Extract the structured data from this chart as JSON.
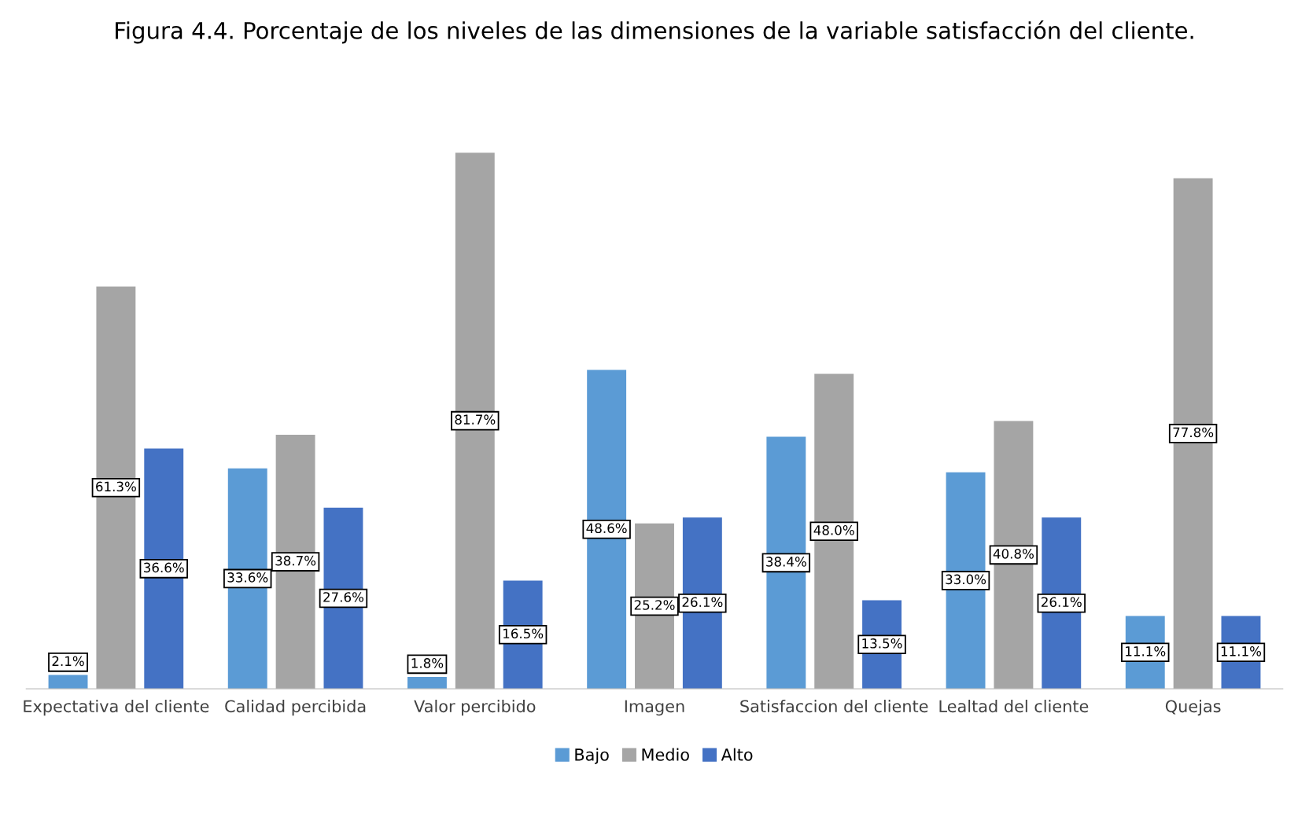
{
  "chart_data": {
    "type": "bar",
    "title": "Figura 4.4. Porcentaje de los niveles de las dimensiones de la variable satisfacción del cliente.",
    "categories": [
      "Expectativa del cliente",
      "Calidad percibida",
      "Valor percibido",
      "Imagen",
      "Satisfaccion del cliente",
      "Lealtad del cliente",
      "Quejas"
    ],
    "series": [
      {
        "name": "Bajo",
        "color": "#5b9bd5",
        "values": [
          2.1,
          33.6,
          1.8,
          48.6,
          38.4,
          33.0,
          11.1
        ],
        "value_labels": [
          "2.1%",
          "33.6%",
          "1.8%",
          "48.6%",
          "38.4%",
          "33.0%",
          "11.1%"
        ]
      },
      {
        "name": "Medio",
        "color": "#a5a5a5",
        "values": [
          61.3,
          38.7,
          81.7,
          25.2,
          48.0,
          40.8,
          77.8
        ],
        "value_labels": [
          "61.3%",
          "38.7%",
          "81.7%",
          "25.2%",
          "48.0%",
          "40.8%",
          "77.8%"
        ]
      },
      {
        "name": "Alto",
        "color": "#4472c4",
        "values": [
          36.6,
          27.6,
          16.5,
          26.1,
          13.5,
          26.1,
          11.1
        ],
        "value_labels": [
          "36.6%",
          "27.6%",
          "16.5%",
          "26.1%",
          "13.5%",
          "26.1%",
          "11.1%"
        ]
      }
    ],
    "legend": "bottom",
    "grid": false
  }
}
